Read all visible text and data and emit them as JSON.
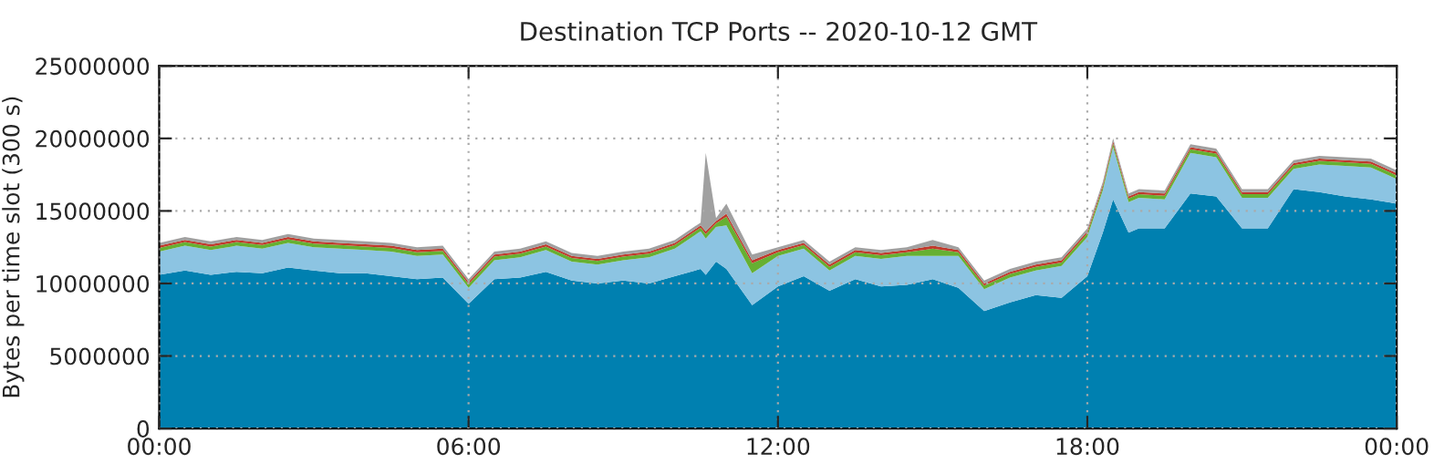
{
  "chart_data": {
    "type": "area",
    "stacked": true,
    "title": "Destination TCP Ports -- 2020-10-12 GMT",
    "ylabel": "Bytes per time slot (300 s)",
    "x": [
      0,
      0.5,
      1,
      1.5,
      2,
      2.5,
      3,
      3.5,
      4,
      4.5,
      5,
      5.5,
      6,
      6.5,
      7,
      7.5,
      8,
      8.5,
      9,
      9.5,
      10,
      10.5,
      10.6,
      10.8,
      11,
      11.5,
      12,
      12.5,
      13,
      13.5,
      14,
      14.5,
      15,
      15.5,
      16,
      16.5,
      17,
      17.5,
      18,
      18.3,
      18.5,
      18.8,
      19,
      19.5,
      20,
      20.5,
      21,
      21.5,
      22,
      22.5,
      23,
      23.5,
      24
    ],
    "xlim": [
      0,
      24
    ],
    "xticks": [
      {
        "value": 0,
        "label": "00:00"
      },
      {
        "value": 6,
        "label": "06:00"
      },
      {
        "value": 12,
        "label": "12:00"
      },
      {
        "value": 18,
        "label": "18:00"
      },
      {
        "value": 24,
        "label": "00:00"
      }
    ],
    "ylim": [
      0,
      25000000
    ],
    "yticks": [
      0,
      5000000,
      10000000,
      15000000,
      20000000,
      25000000
    ],
    "grid": true,
    "series": [
      {
        "color": "#0080b0",
        "values": [
          10600000,
          10900000,
          10600000,
          10800000,
          10700000,
          11100000,
          10900000,
          10700000,
          10700000,
          10500000,
          10300000,
          10400000,
          8600000,
          10300000,
          10400000,
          10800000,
          10200000,
          10000000,
          10200000,
          10000000,
          10500000,
          11000000,
          10600000,
          11500000,
          11000000,
          8500000,
          9800000,
          10500000,
          9500000,
          10300000,
          9800000,
          9900000,
          10300000,
          9700000,
          8100000,
          8700000,
          9200000,
          9000000,
          10500000,
          13500000,
          15800000,
          13500000,
          13800000,
          13800000,
          16200000,
          16000000,
          13800000,
          13800000,
          16500000,
          16300000,
          16000000,
          15800000,
          15500000
        ]
      },
      {
        "color": "#8cc4e2",
        "values": [
          1600000,
          1700000,
          1700000,
          1800000,
          1700000,
          1700000,
          1600000,
          1700000,
          1600000,
          1700000,
          1600000,
          1600000,
          1100000,
          1300000,
          1400000,
          1500000,
          1300000,
          1300000,
          1400000,
          1800000,
          1900000,
          2600000,
          2500000,
          2400000,
          3000000,
          2200000,
          2100000,
          1900000,
          1400000,
          1600000,
          1900000,
          2000000,
          1600000,
          2200000,
          1500000,
          1700000,
          1700000,
          2200000,
          2700000,
          2900000,
          3600000,
          2100000,
          2100000,
          2000000,
          2800000,
          2700000,
          2100000,
          2100000,
          1400000,
          1900000,
          2100000,
          2200000,
          1700000
        ]
      },
      {
        "color": "#66b032",
        "values": [
          250000,
          250000,
          250000,
          250000,
          250000,
          250000,
          250000,
          250000,
          250000,
          250000,
          250000,
          250000,
          250000,
          250000,
          250000,
          250000,
          250000,
          250000,
          250000,
          250000,
          250000,
          250000,
          300000,
          250000,
          600000,
          700000,
          250000,
          250000,
          250000,
          250000,
          250000,
          250000,
          500000,
          250000,
          250000,
          250000,
          250000,
          250000,
          250000,
          250000,
          250000,
          250000,
          250000,
          250000,
          250000,
          250000,
          250000,
          250000,
          250000,
          250000,
          250000,
          250000,
          250000
        ]
      },
      {
        "color": "#c0392b",
        "values": [
          150000,
          150000,
          150000,
          150000,
          150000,
          150000,
          150000,
          150000,
          150000,
          150000,
          150000,
          150000,
          150000,
          150000,
          150000,
          150000,
          150000,
          150000,
          150000,
          150000,
          150000,
          150000,
          200000,
          150000,
          200000,
          200000,
          150000,
          150000,
          150000,
          150000,
          150000,
          150000,
          200000,
          150000,
          150000,
          150000,
          150000,
          150000,
          150000,
          150000,
          150000,
          150000,
          150000,
          150000,
          150000,
          150000,
          150000,
          150000,
          150000,
          150000,
          150000,
          150000,
          150000
        ]
      },
      {
        "color": "#a0a0a0",
        "values": [
          200000,
          200000,
          200000,
          200000,
          200000,
          200000,
          200000,
          200000,
          200000,
          200000,
          200000,
          200000,
          200000,
          200000,
          200000,
          200000,
          200000,
          200000,
          200000,
          200000,
          200000,
          200000,
          5400000,
          200000,
          700000,
          400000,
          200000,
          200000,
          200000,
          200000,
          200000,
          200000,
          400000,
          200000,
          200000,
          200000,
          200000,
          200000,
          200000,
          200000,
          200000,
          200000,
          200000,
          200000,
          200000,
          200000,
          200000,
          200000,
          200000,
          200000,
          200000,
          200000,
          200000
        ]
      }
    ]
  }
}
